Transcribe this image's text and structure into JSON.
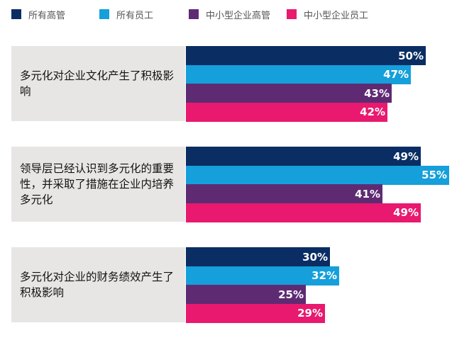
{
  "chart_data": {
    "type": "bar",
    "orientation": "horizontal",
    "categories": [
      "多元化对企业文化产生了积极影响",
      "领导层已经认识到多元化的重要性，并采取了措施在企业内培养多元化",
      "多元化对企业的财务绩效产生了积极影响"
    ],
    "series": [
      {
        "name": "所有高管",
        "color": "#0a2d63",
        "values": [
          50,
          49,
          30
        ]
      },
      {
        "name": "所有员工",
        "color": "#159fdb",
        "values": [
          47,
          55,
          32
        ]
      },
      {
        "name": "中小型企业高管",
        "color": "#5e2b73",
        "values": [
          43,
          41,
          25
        ]
      },
      {
        "name": "中小型企业员工",
        "color": "#e8196e",
        "values": [
          42,
          49,
          29
        ]
      }
    ],
    "value_suffix": "%",
    "legend_position": "top",
    "grid": false,
    "xlim": [
      0,
      100
    ]
  }
}
